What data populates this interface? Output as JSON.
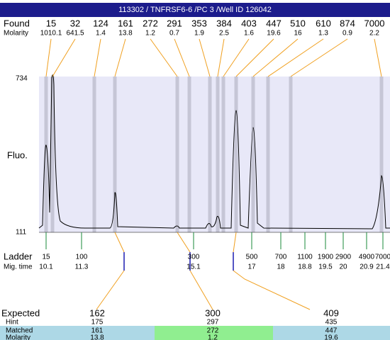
{
  "header": {
    "title": "113302 / TNFRSF6-6 /PC 3 /Well ID 126042"
  },
  "found": {
    "label": "Found",
    "values": [
      15,
      32,
      124,
      161,
      272,
      291,
      353,
      384,
      403,
      447,
      510,
      610,
      874,
      7000
    ]
  },
  "molarity": {
    "label": "Molarity",
    "values": [
      1010.1,
      641.5,
      1.4,
      13.8,
      1.2,
      0.7,
      1.9,
      2.5,
      1.6,
      19.6,
      16,
      1.3,
      0.9,
      2.2
    ]
  },
  "fluo": {
    "label": "Fluo.",
    "max": 734,
    "min": 111
  },
  "ladder": {
    "label": "Ladder",
    "values": [
      15,
      100,
      300,
      500,
      700,
      1100,
      1900,
      2900,
      4900,
      7000
    ]
  },
  "mig_time": {
    "label": "Mig. time",
    "values": [
      10.1,
      11.3,
      15.1,
      17,
      18,
      18.8,
      19.5,
      20,
      20.9,
      21.4
    ]
  },
  "table": {
    "labels": [
      "Expected",
      "Hint",
      "Matched",
      "Molarity"
    ],
    "expected": [
      162,
      300,
      409
    ],
    "hint": [
      175,
      297,
      435
    ],
    "matched": [
      161,
      272,
      447
    ],
    "molarity": [
      13.8,
      1.2,
      19.6
    ]
  }
}
